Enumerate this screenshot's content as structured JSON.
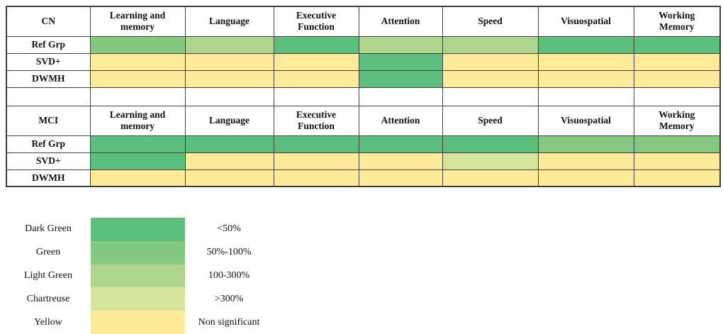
{
  "colors": {
    "dark_green": "#5dbe7e",
    "green": "#85c884",
    "light_green": "#afd48b",
    "chartreuse": "#d6e49c",
    "yellow": "#fdeb9b",
    "border": "#3f3f3f",
    "background": "#ffffff"
  },
  "chart_data": {
    "type": "heatmap",
    "columns": [
      "Learning and\nmemory",
      "Language",
      "Executive\nFunction",
      "Attention",
      "Speed",
      "Visuospatial",
      "Working\nMemory"
    ],
    "tables": [
      {
        "group": "CN",
        "rows": [
          {
            "label": "Ref Grp",
            "cells": [
              "green",
              "light_green",
              "dark_green",
              "light_green",
              "light_green",
              "dark_green",
              "dark_green"
            ]
          },
          {
            "label": "SVD+",
            "cells": [
              "yellow",
              "yellow",
              "yellow",
              "dark_green",
              "yellow",
              "yellow",
              "yellow"
            ]
          },
          {
            "label": "DWMH",
            "cells": [
              "yellow",
              "yellow",
              "yellow",
              "dark_green",
              "yellow",
              "yellow",
              "yellow"
            ]
          }
        ]
      },
      {
        "group": "MCI",
        "rows": [
          {
            "label": "Ref Grp",
            "cells": [
              "dark_green",
              "dark_green",
              "dark_green",
              "dark_green",
              "dark_green",
              "green",
              "green"
            ]
          },
          {
            "label": "SVD+",
            "cells": [
              "dark_green",
              "yellow",
              "yellow",
              "yellow",
              "chartreuse",
              "yellow",
              "yellow"
            ]
          },
          {
            "label": "DWMH",
            "cells": [
              "yellow",
              "yellow",
              "yellow",
              "yellow",
              "yellow",
              "yellow",
              "yellow"
            ]
          }
        ]
      }
    ],
    "legend": [
      {
        "name": "Dark Green",
        "color": "dark_green",
        "range": "<50%"
      },
      {
        "name": "Green",
        "color": "green",
        "range": "50%-100%"
      },
      {
        "name": "Light Green",
        "color": "light_green",
        "range": "100-300%"
      },
      {
        "name": "Chartreuse",
        "color": "chartreuse",
        "range": ">300%"
      },
      {
        "name": "Yellow",
        "color": "yellow",
        "range": "Non significant"
      }
    ]
  }
}
